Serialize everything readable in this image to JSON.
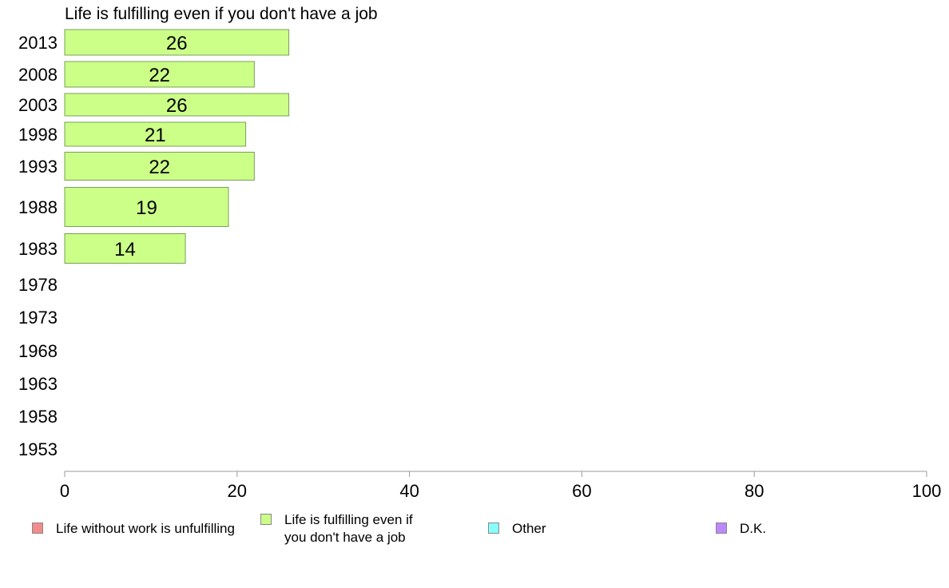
{
  "chart_data": {
    "type": "bar",
    "orientation": "horizontal",
    "title": "Life is fulfilling even if you don't have a job",
    "categories": [
      "2013",
      "2008",
      "2003",
      "1998",
      "1993",
      "1988",
      "1983",
      "1978",
      "1973",
      "1968",
      "1963",
      "1958",
      "1953"
    ],
    "series": [
      {
        "name": "Life is fulfilling even if you don't have a job",
        "color": "#ccff88",
        "values": [
          26,
          22,
          26,
          21,
          22,
          19,
          14,
          null,
          null,
          null,
          null,
          null,
          null
        ]
      }
    ],
    "xlim": [
      0,
      100
    ],
    "xticks": [
      "0",
      "20",
      "40",
      "60",
      "80",
      "100"
    ],
    "grid": false,
    "legend_position": "bottom",
    "legend": [
      {
        "label": "Life without work is unfulfilling",
        "color": "#f28b8b"
      },
      {
        "label": "Life is fulfilling even if you don't have a job",
        "color": "#ccff88"
      },
      {
        "label": "Other",
        "color": "#88ffff"
      },
      {
        "label": "D.K.",
        "color": "#bb88ff"
      }
    ]
  }
}
